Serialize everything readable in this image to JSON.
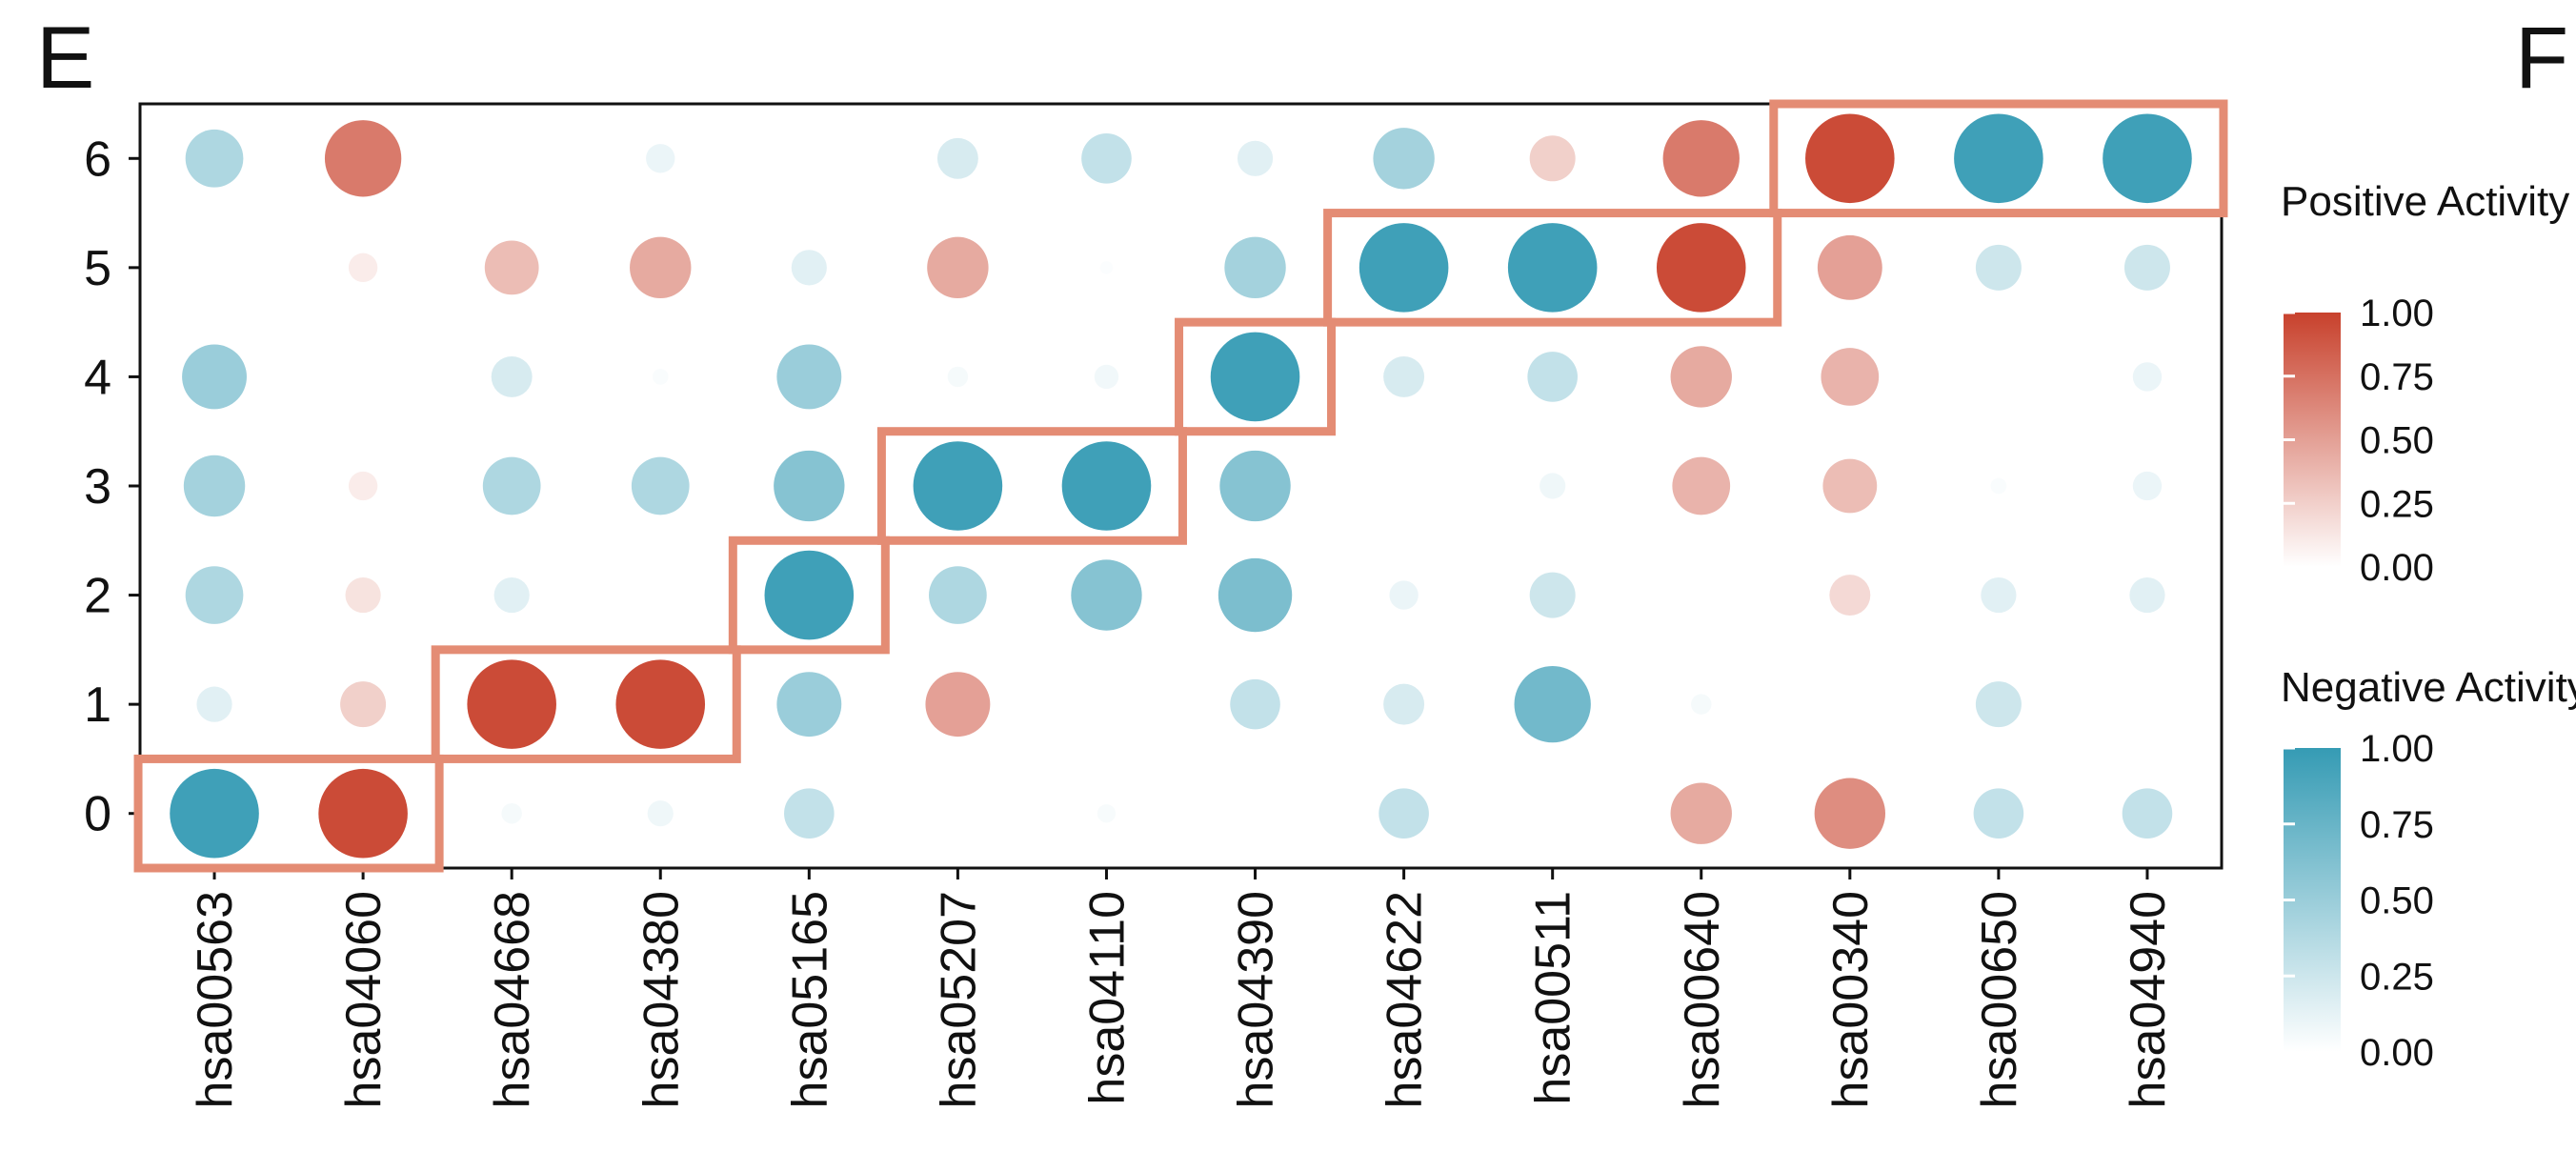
{
  "panel_labels": [
    "E",
    "F"
  ],
  "chart_data": {
    "type": "dot-matrix",
    "categories": [
      "hsa00563",
      "hsa04060",
      "hsa04668",
      "hsa04380",
      "hsa05165",
      "hsa05207",
      "hsa04110",
      "hsa04390",
      "hsa04622",
      "hsa00511",
      "hsa00640",
      "hsa00340",
      "hsa00650",
      "hsa04940"
    ],
    "ylim": [
      -0.5,
      6.5
    ],
    "yticks": [
      0,
      1,
      2,
      3,
      4,
      5,
      6
    ],
    "colorbar_ticks": [
      {
        "value": 1,
        "label": "1.00"
      },
      {
        "value": 0.75,
        "label": "0.75"
      },
      {
        "value": 0.5,
        "label": "0.50"
      },
      {
        "value": 0.25,
        "label": "0.25"
      },
      {
        "value": 0,
        "label": "0.00"
      }
    ],
    "series": [
      {
        "name": "Positive Activity",
        "color": "#c8412c",
        "values": [
          [
            null,
            0.95,
            null,
            null,
            null,
            null,
            null,
            null,
            null,
            null,
            0.45,
            0.6,
            null,
            null
          ],
          [
            null,
            0.25,
            0.95,
            0.95,
            null,
            0.5,
            null,
            null,
            null,
            null,
            null,
            null,
            null,
            null
          ],
          [
            null,
            0.15,
            null,
            null,
            null,
            null,
            null,
            null,
            null,
            null,
            null,
            0.2,
            null,
            null
          ],
          [
            null,
            0.1,
            null,
            null,
            null,
            null,
            null,
            null,
            null,
            null,
            0.4,
            0.35,
            null,
            null
          ],
          [
            null,
            null,
            null,
            null,
            null,
            null,
            null,
            null,
            null,
            null,
            0.45,
            0.4,
            null,
            null
          ],
          [
            null,
            0.1,
            0.35,
            0.45,
            null,
            0.45,
            null,
            null,
            null,
            null,
            0.95,
            0.5,
            null,
            null
          ],
          [
            null,
            0.7,
            null,
            null,
            null,
            null,
            null,
            null,
            null,
            0.25,
            0.7,
            0.95,
            null,
            null
          ]
        ]
      },
      {
        "name": "Negative Activity",
        "color": "#359bb4",
        "values": [
          [
            0.95,
            null,
            0.05,
            0.08,
            0.3,
            null,
            0.04,
            null,
            0.3,
            null,
            null,
            null,
            0.3,
            0.3
          ],
          [
            0.15,
            null,
            null,
            null,
            0.5,
            null,
            null,
            0.3,
            0.2,
            0.7,
            0.05,
            null,
            0.25,
            null
          ],
          [
            0.4,
            null,
            0.15,
            null,
            0.95,
            0.4,
            0.6,
            0.65,
            0.1,
            0.25,
            null,
            null,
            0.15,
            0.15
          ],
          [
            0.45,
            null,
            0.4,
            0.4,
            0.6,
            0.95,
            0.95,
            0.6,
            null,
            0.08,
            null,
            null,
            0.03,
            0.1
          ],
          [
            0.5,
            null,
            0.2,
            0.03,
            0.5,
            0.05,
            0.07,
            0.95,
            0.2,
            0.3,
            null,
            null,
            null,
            0.1
          ],
          [
            null,
            null,
            null,
            null,
            0.15,
            null,
            0.02,
            0.45,
            0.95,
            0.95,
            null,
            null,
            0.25,
            0.25
          ],
          [
            0.4,
            null,
            null,
            0.1,
            null,
            0.2,
            0.3,
            0.15,
            0.45,
            null,
            null,
            null,
            0.95,
            0.95
          ]
        ]
      }
    ]
  }
}
